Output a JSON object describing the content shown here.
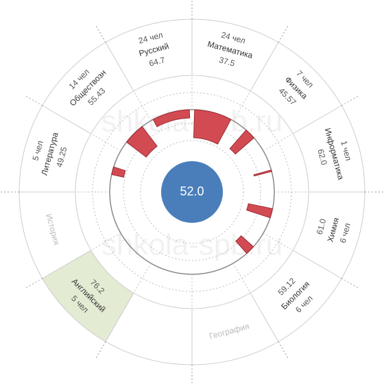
{
  "chart_data": {
    "type": "radial-bar",
    "watermark": "shkola-spb.ru",
    "center": {
      "value": 52,
      "label": "52.0"
    },
    "center_color": "#4a7ebb",
    "bar_color": "#d24b53",
    "highlight_color": "#e3ebd3",
    "subjects": [
      {
        "name": "Математика",
        "score": 37.5,
        "students": {
          "value": 24,
          "label": "24 чел"
        },
        "bar": 34
      },
      {
        "name": "Физика",
        "score": 45.57,
        "students": {
          "value": 7,
          "label": "7 чел"
        },
        "bar": 30
      },
      {
        "name": "Информатика",
        "score": {
          "value": 62,
          "label": "62.0"
        },
        "students": {
          "value": 1,
          "label": "1 чел"
        },
        "bar": 22
      },
      {
        "name": "Химия",
        "score": {
          "value": 61,
          "label": "61.0"
        },
        "students": {
          "value": 6,
          "label": "6 чел"
        },
        "bar": 30
      },
      {
        "name": "Биология",
        "score": 59.12,
        "students": {
          "value": 6,
          "label": "6 чел"
        },
        "bar": 20
      },
      {
        "name": "География"
      },
      null,
      {
        "name": "Английский",
        "score": 76.2,
        "students": {
          "value": 5,
          "label": "5 чел"
        },
        "highlight": true
      },
      {
        "name": "История"
      },
      {
        "name": "Литература",
        "score": 49.25,
        "students": {
          "value": 5,
          "label": "5 чел"
        },
        "bar": 15
      },
      {
        "name": "Обществозн",
        "score": 55.43,
        "students": {
          "value": 14,
          "label": "14 чел"
        },
        "bar": 30
      },
      {
        "name": "Русский",
        "score": 64.7,
        "students": {
          "value": 24,
          "label": "24 чел"
        },
        "bar": 10
      }
    ]
  }
}
